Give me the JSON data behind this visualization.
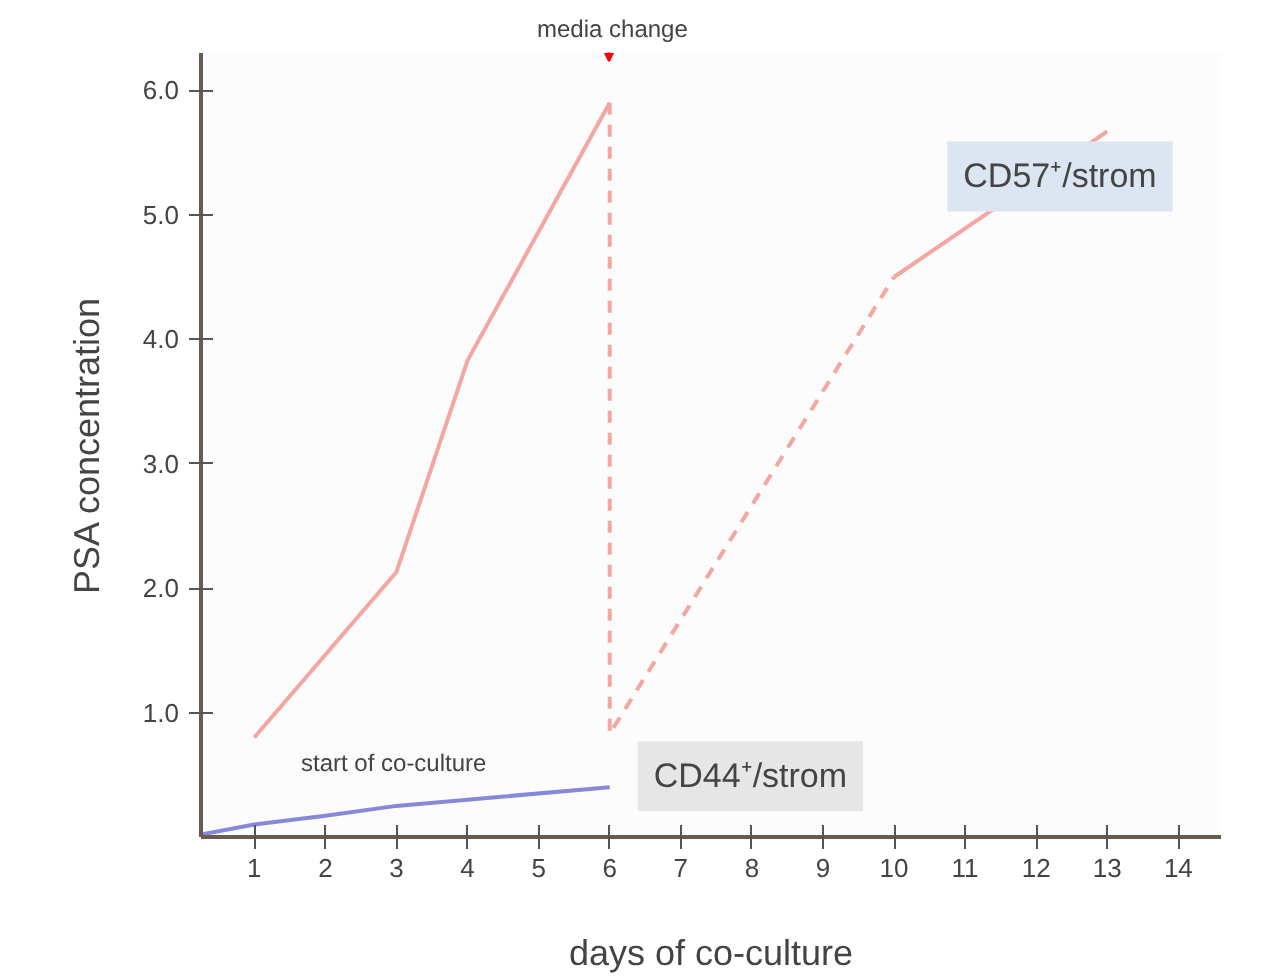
{
  "chart_data": {
    "type": "line",
    "xlabel": "days of co-culture",
    "ylabel": "PSA concentration",
    "xlim": [
      0.25,
      14.6
    ],
    "ylim": [
      0,
      6.3
    ],
    "xticks": [
      1,
      2,
      3,
      4,
      5,
      6,
      7,
      8,
      9,
      10,
      11,
      12,
      13,
      14
    ],
    "yticks": [
      {
        "value": 1,
        "label": "1.0"
      },
      {
        "value": 2,
        "label": "2.0"
      },
      {
        "value": 3,
        "label": "3.0"
      },
      {
        "value": 4,
        "label": "4.0"
      },
      {
        "value": 5,
        "label": "5.0"
      },
      {
        "value": 6,
        "label": "6.0"
      }
    ],
    "grid": false,
    "marker": "none",
    "series": [
      {
        "color": "#f4a6a0",
        "x": [
          1,
          3,
          4,
          6
        ],
        "values": [
          0.8,
          2.13,
          3.83,
          5.9
        ],
        "line_style": "solid"
      },
      {
        "color": "#f4a6a0",
        "x": [
          6,
          6,
          10
        ],
        "values": [
          5.9,
          0.83,
          4.5
        ],
        "line_style": "dashed"
      },
      {
        "name": "CD57⁺/strom",
        "color": "#f4a6a0",
        "x": [
          10,
          13
        ],
        "values": [
          4.5,
          5.67
        ],
        "line_style": "solid"
      },
      {
        "name": "CD44⁺/strom",
        "color": "#8888d8",
        "x": [
          0.25,
          1,
          2,
          3,
          6
        ],
        "values": [
          0.02,
          0.1,
          0.17,
          0.25,
          0.4
        ],
        "line_style": "solid"
      }
    ],
    "annotations": [
      "media change",
      "start of co-culture"
    ]
  }
}
